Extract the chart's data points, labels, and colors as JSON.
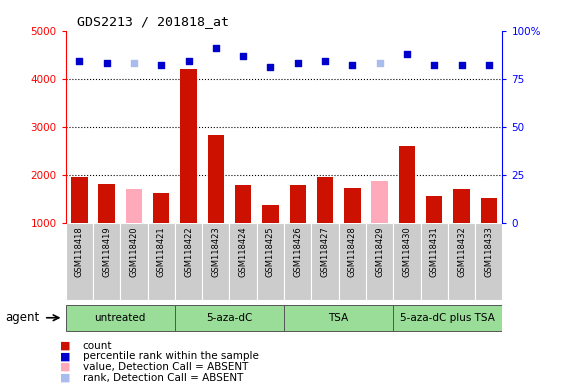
{
  "title": "GDS2213 / 201818_at",
  "samples": [
    "GSM118418",
    "GSM118419",
    "GSM118420",
    "GSM118421",
    "GSM118422",
    "GSM118423",
    "GSM118424",
    "GSM118425",
    "GSM118426",
    "GSM118427",
    "GSM118428",
    "GSM118429",
    "GSM118430",
    "GSM118431",
    "GSM118432",
    "GSM118433"
  ],
  "bar_values": [
    1950,
    1800,
    1700,
    1620,
    4200,
    2820,
    1780,
    1360,
    1790,
    1950,
    1720,
    1870,
    2600,
    1560,
    1710,
    1510
  ],
  "bar_absent": [
    false,
    false,
    true,
    false,
    false,
    false,
    false,
    false,
    false,
    false,
    false,
    true,
    false,
    false,
    false,
    false
  ],
  "rank_values_pct": [
    84,
    83,
    83,
    82,
    84,
    91,
    87,
    81,
    83,
    84,
    82,
    83,
    88,
    82,
    82,
    82
  ],
  "rank_absent": [
    false,
    false,
    true,
    false,
    false,
    false,
    false,
    false,
    false,
    false,
    false,
    true,
    false,
    false,
    false,
    false
  ],
  "groups": [
    {
      "label": "untreated",
      "start": 0,
      "end": 4
    },
    {
      "label": "5-aza-dC",
      "start": 4,
      "end": 8
    },
    {
      "label": "TSA",
      "start": 8,
      "end": 12
    },
    {
      "label": "5-aza-dC plus TSA",
      "start": 12,
      "end": 16
    }
  ],
  "ylim_left": [
    1000,
    5000
  ],
  "ylim_right": [
    0,
    100
  ],
  "yticks_left": [
    1000,
    2000,
    3000,
    4000,
    5000
  ],
  "yticks_right": [
    0,
    25,
    50,
    75,
    100
  ],
  "bar_color_present": "#cc1100",
  "bar_color_absent": "#ffaabb",
  "rank_color_present": "#0000cc",
  "rank_color_absent": "#aabbee",
  "sample_box_color": "#cccccc",
  "group_color": "#99dd99",
  "bg_color": "#ffffff"
}
